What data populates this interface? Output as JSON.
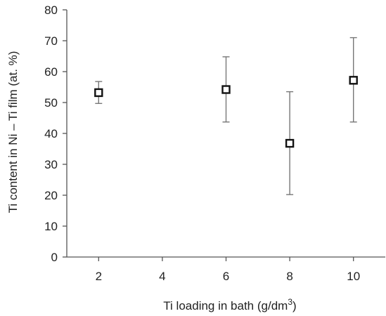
{
  "chart_data": {
    "type": "scatter",
    "xlabel": "Ti loading in bath (g/dm",
    "xlabel_superscript": "3",
    "xlabel_suffix": ")",
    "ylabel": "Ti content in Ni – Ti film (at. %)",
    "xlim": [
      1,
      11
    ],
    "ylim": [
      0,
      80
    ],
    "x_ticks": [
      2,
      4,
      6,
      8,
      10
    ],
    "y_ticks": [
      0,
      10,
      20,
      30,
      40,
      50,
      60,
      70,
      80
    ],
    "x_tick_labels": [
      "2",
      "4",
      "6",
      "8",
      "10"
    ],
    "y_tick_labels": [
      "0",
      "10",
      "20",
      "30",
      "40",
      "50",
      "60",
      "70",
      "80"
    ],
    "grid": false,
    "legend": "none",
    "marker": "open-square",
    "series": [
      {
        "points": [
          {
            "x": 2,
            "y": 53.2,
            "err_low": 49.7,
            "err_high": 56.8
          },
          {
            "x": 6,
            "y": 54.2,
            "err_low": 43.7,
            "err_high": 64.8
          },
          {
            "x": 8,
            "y": 36.8,
            "err_low": 20.2,
            "err_high": 53.5
          },
          {
            "x": 10,
            "y": 57.2,
            "err_low": 43.7,
            "err_high": 71.0
          }
        ]
      }
    ]
  }
}
